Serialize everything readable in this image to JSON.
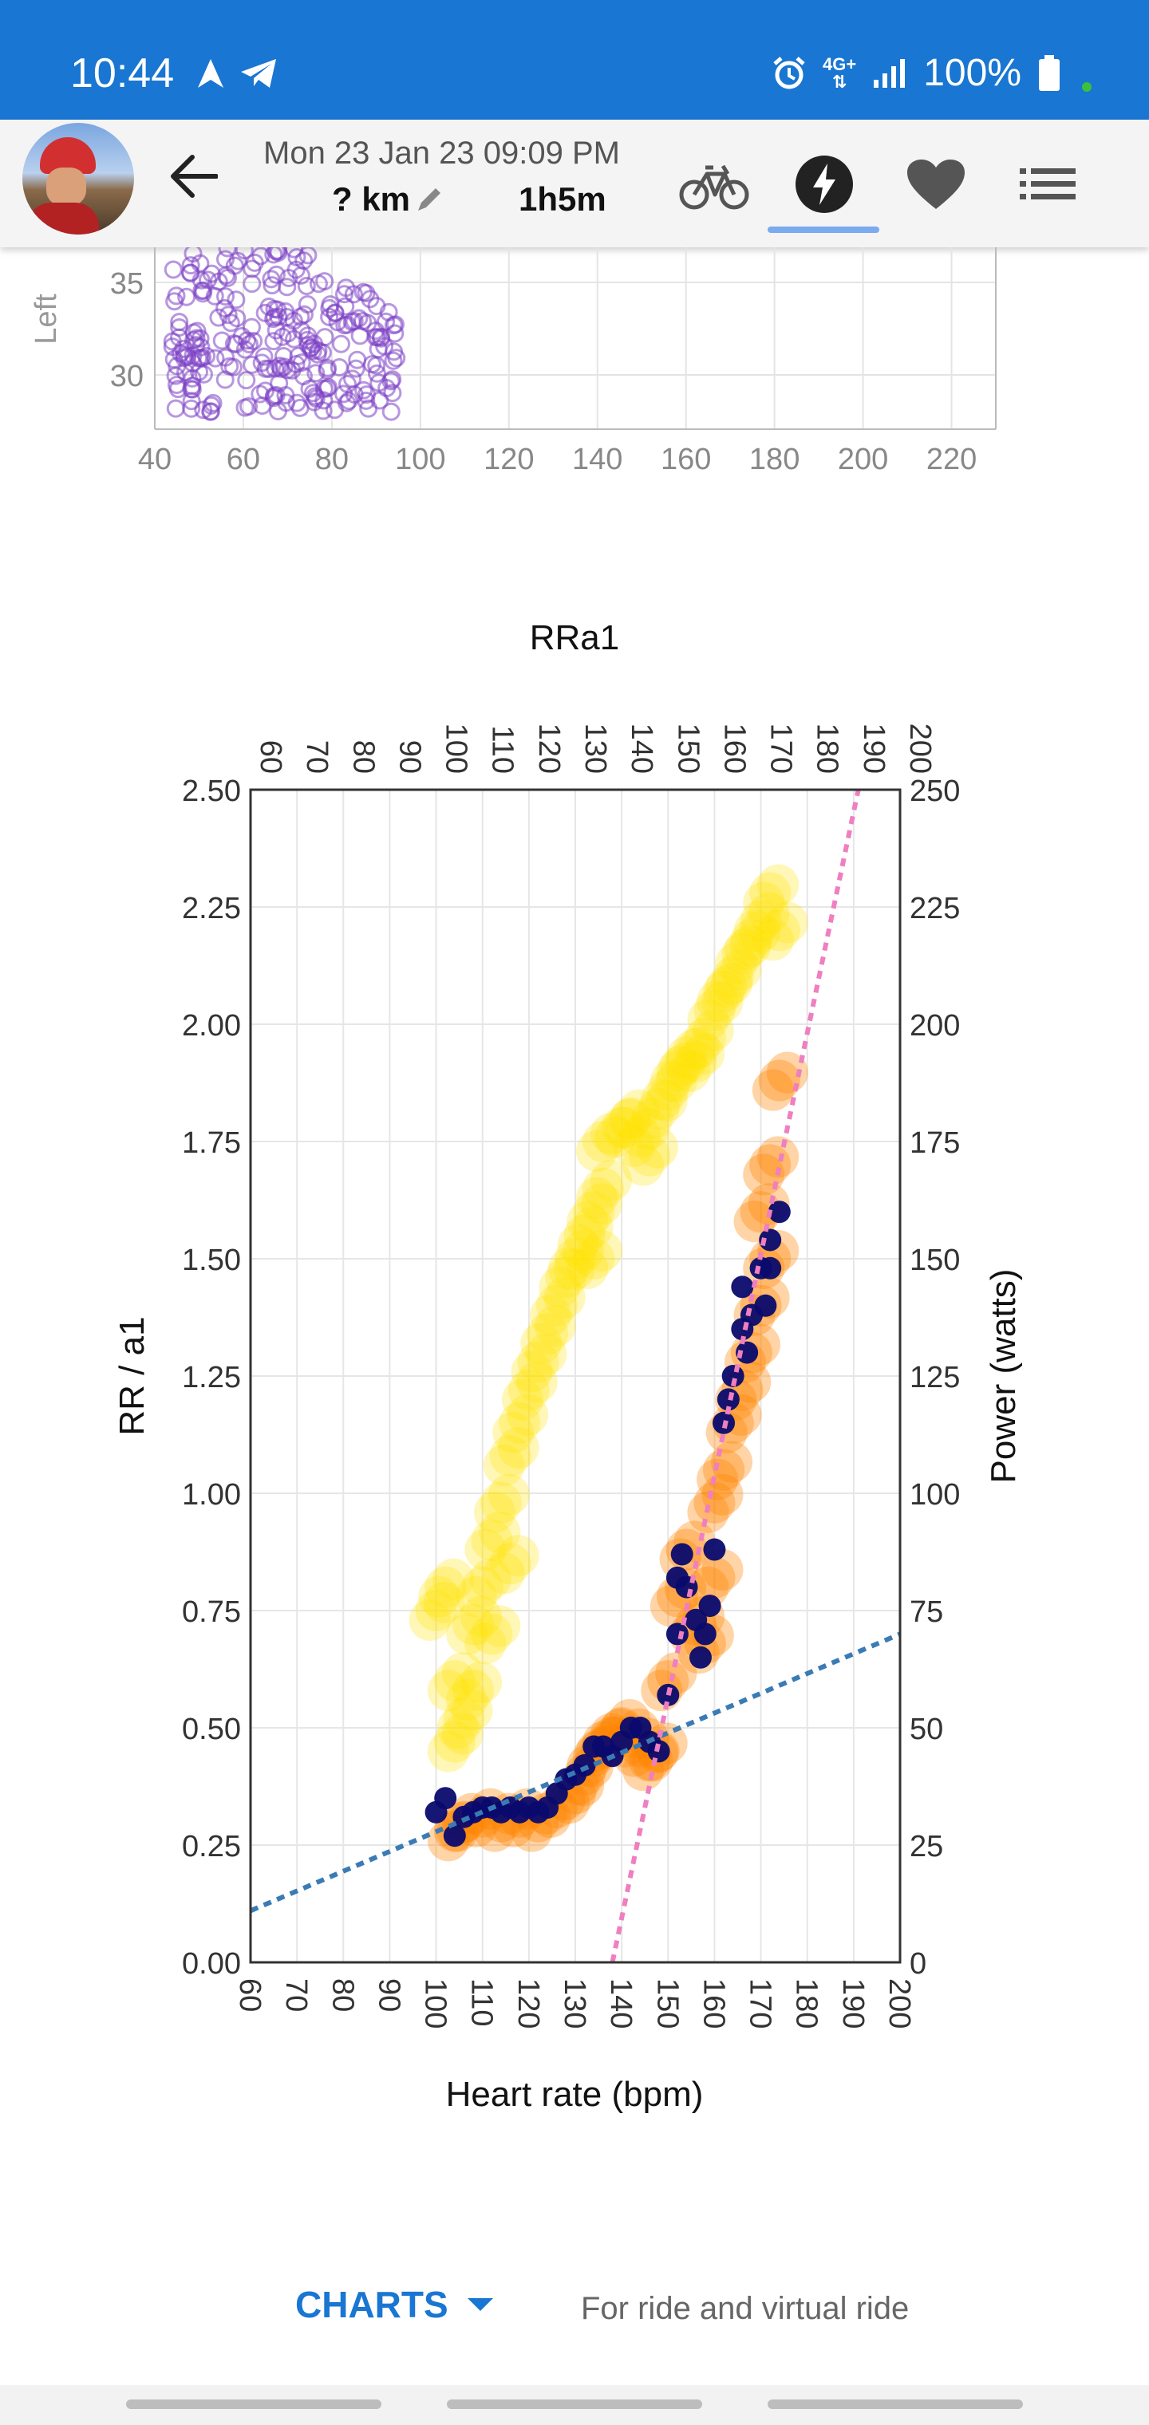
{
  "status_bar": {
    "time": "10:44",
    "network": "4G+",
    "battery": "100%",
    "background": "#1976d2"
  },
  "header": {
    "date": "Mon 23 Jan 23  09:09 PM",
    "distance": "? km",
    "duration": "1h5m",
    "tabs": [
      "bike-icon",
      "power-icon",
      "heart-icon",
      "list-icon"
    ],
    "active_tab": "power-icon"
  },
  "top_chart": {
    "ylabel": "Left",
    "yticks": [
      "35",
      "30"
    ],
    "xticks": [
      "40",
      "60",
      "80",
      "100",
      "120",
      "140",
      "160",
      "180",
      "200",
      "220"
    ],
    "marker_color": "#7b3fc4"
  },
  "chart_data": {
    "type": "scatter",
    "title": "RRa1",
    "xlabel": "Heart rate (bpm)",
    "ylabel": "RR / a1",
    "y2label": "Power (watts)",
    "xlim": [
      60,
      200
    ],
    "ylim": [
      0,
      2.5
    ],
    "y2lim": [
      0,
      250
    ],
    "xticks": [
      "60",
      "70",
      "80",
      "90",
      "100",
      "110",
      "120",
      "130",
      "140",
      "150",
      "160",
      "170",
      "180",
      "190",
      "200"
    ],
    "yticks": [
      "0.00",
      "0.25",
      "0.50",
      "0.75",
      "1.00",
      "1.25",
      "1.50",
      "1.75",
      "2.00",
      "2.25",
      "2.50"
    ],
    "y2ticks": [
      "0",
      "25",
      "50",
      "75",
      "100",
      "125",
      "150",
      "175",
      "200",
      "225",
      "250"
    ],
    "grid": true,
    "series": [
      {
        "axis": "y2",
        "color": "#ffe200",
        "points": [
          [
            104,
            47
          ],
          [
            106,
            52
          ],
          [
            108,
            58
          ],
          [
            108,
            72
          ],
          [
            110,
            80
          ],
          [
            112,
            90
          ],
          [
            114,
            98
          ],
          [
            116,
            108
          ],
          [
            118,
            115
          ],
          [
            120,
            122
          ],
          [
            122,
            128
          ],
          [
            124,
            134
          ],
          [
            126,
            140
          ],
          [
            128,
            146
          ],
          [
            130,
            150
          ],
          [
            132,
            155
          ],
          [
            134,
            150
          ],
          [
            134,
            160
          ],
          [
            136,
            165
          ],
          [
            136,
            175
          ],
          [
            140,
            178
          ],
          [
            142,
            180
          ],
          [
            144,
            176
          ],
          [
            146,
            172
          ],
          [
            148,
            182
          ],
          [
            150,
            186
          ],
          [
            152,
            190
          ],
          [
            154,
            193
          ],
          [
            156,
            192
          ],
          [
            158,
            197
          ],
          [
            160,
            203
          ],
          [
            162,
            207
          ],
          [
            164,
            210
          ],
          [
            166,
            215
          ],
          [
            168,
            218
          ],
          [
            170,
            222
          ],
          [
            172,
            228
          ],
          [
            174,
            220
          ],
          [
            100,
            75
          ],
          [
            102,
            80
          ],
          [
            104,
            60
          ],
          [
            112,
            70
          ],
          [
            116,
            85
          ]
        ]
      },
      {
        "axis": "y",
        "color": "#ff8400",
        "points": [
          [
            104,
            0.28
          ],
          [
            106,
            0.3
          ],
          [
            110,
            0.31
          ],
          [
            114,
            0.3
          ],
          [
            118,
            0.31
          ],
          [
            122,
            0.3
          ],
          [
            126,
            0.33
          ],
          [
            130,
            0.36
          ],
          [
            132,
            0.4
          ],
          [
            134,
            0.44
          ],
          [
            136,
            0.47
          ],
          [
            138,
            0.48
          ],
          [
            140,
            0.5
          ],
          [
            142,
            0.48
          ],
          [
            144,
            0.46
          ],
          [
            146,
            0.43
          ],
          [
            148,
            0.45
          ],
          [
            150,
            0.6
          ],
          [
            152,
            0.78
          ],
          [
            154,
            0.88
          ],
          [
            156,
            0.72
          ],
          [
            158,
            0.68
          ],
          [
            160,
            0.82
          ],
          [
            160,
            0.98
          ],
          [
            162,
            1.05
          ],
          [
            164,
            1.15
          ],
          [
            166,
            1.22
          ],
          [
            168,
            1.3
          ],
          [
            170,
            1.4
          ],
          [
            172,
            1.5
          ],
          [
            170,
            1.6
          ],
          [
            172,
            1.7
          ],
          [
            174,
            1.88
          ]
        ]
      },
      {
        "axis": "y",
        "color": "#0a0a6e",
        "points": [
          [
            100,
            0.32
          ],
          [
            102,
            0.35
          ],
          [
            104,
            0.27
          ],
          [
            106,
            0.31
          ],
          [
            108,
            0.32
          ],
          [
            110,
            0.33
          ],
          [
            112,
            0.33
          ],
          [
            114,
            0.32
          ],
          [
            116,
            0.33
          ],
          [
            118,
            0.32
          ],
          [
            120,
            0.33
          ],
          [
            122,
            0.32
          ],
          [
            124,
            0.33
          ],
          [
            126,
            0.36
          ],
          [
            128,
            0.39
          ],
          [
            130,
            0.4
          ],
          [
            132,
            0.42
          ],
          [
            134,
            0.46
          ],
          [
            136,
            0.46
          ],
          [
            138,
            0.44
          ],
          [
            140,
            0.47
          ],
          [
            142,
            0.5
          ],
          [
            144,
            0.5
          ],
          [
            146,
            0.47
          ],
          [
            148,
            0.45
          ],
          [
            150,
            0.57
          ],
          [
            152,
            0.7
          ],
          [
            152,
            0.82
          ],
          [
            153,
            0.87
          ],
          [
            154,
            0.8
          ],
          [
            156,
            0.73
          ],
          [
            157,
            0.65
          ],
          [
            158,
            0.7
          ],
          [
            159,
            0.76
          ],
          [
            160,
            0.88
          ],
          [
            162,
            1.15
          ],
          [
            163,
            1.2
          ],
          [
            164,
            1.25
          ],
          [
            166,
            1.35
          ],
          [
            167,
            1.3
          ],
          [
            168,
            1.38
          ],
          [
            170,
            1.48
          ],
          [
            171,
            1.4
          ],
          [
            172,
            1.54
          ],
          [
            172,
            1.48
          ],
          [
            174,
            1.6
          ],
          [
            166,
            1.44
          ]
        ]
      }
    ],
    "lines": [
      {
        "color": "#3a7bb5",
        "style": "dashed",
        "from": [
          60,
          0.11
        ],
        "to": [
          200,
          0.7
        ]
      },
      {
        "color": "#ef7fc0",
        "style": "dashed",
        "from": [
          138,
          0.0
        ],
        "to": [
          191,
          2.5
        ]
      }
    ]
  },
  "footer": {
    "charts_button": "CHARTS",
    "description": "For ride and virtual ride"
  }
}
